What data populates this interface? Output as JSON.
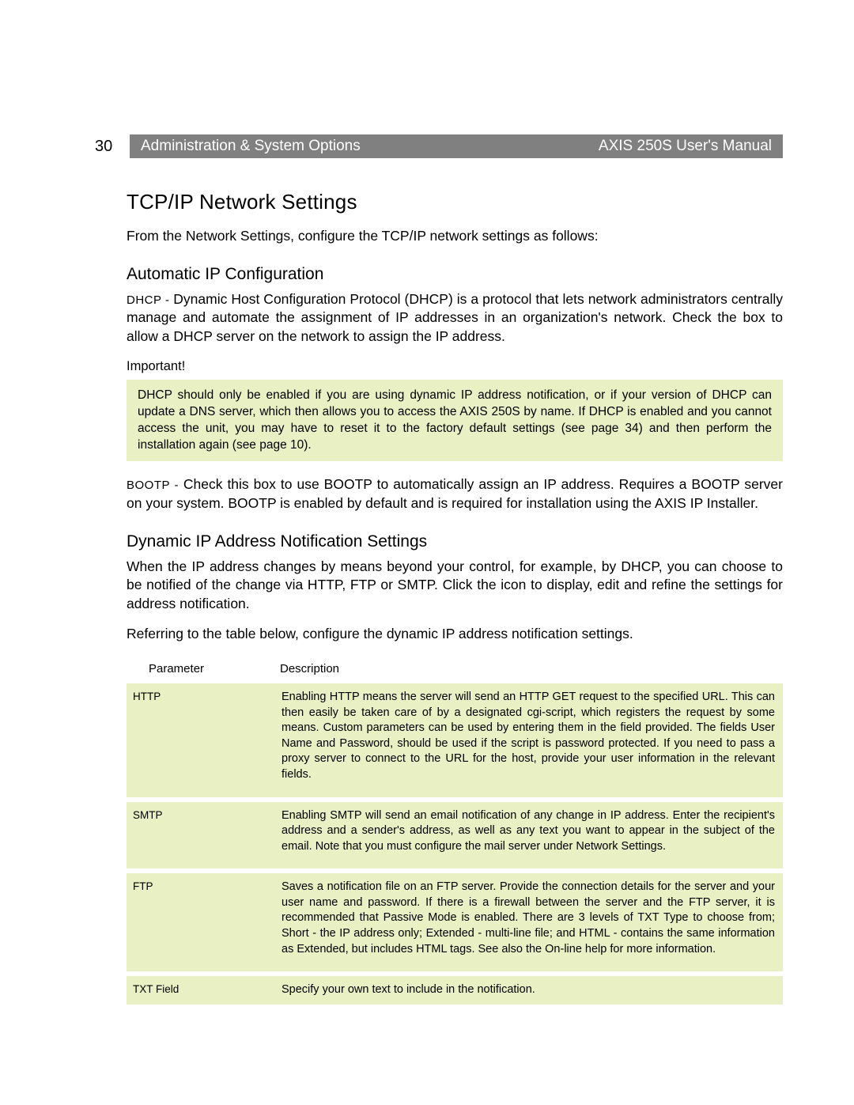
{
  "colors": {
    "header_bg": "#808080",
    "header_text": "#ffffff",
    "note_bg": "#e9f0c3",
    "body_text": "#000000",
    "page_bg": "#ffffff"
  },
  "typography": {
    "body_font_size_pt": 13,
    "h1_font_size_pt": 20,
    "h2_font_size_pt": 16,
    "table_font_size_pt": 11
  },
  "header": {
    "page_number": "30",
    "section": "Administration & System Options",
    "manual": "AXIS 250S User's Manual"
  },
  "h1": "TCP/IP Network Settings",
  "intro": "From the Network Settings, configure the TCP/IP network settings as follows:",
  "h2_auto": "Automatic IP Configuration",
  "dhcp_lead": "DHCP - ",
  "dhcp_body": "Dynamic Host Configuration Protocol (DHCP) is a protocol that lets network administrators centrally manage and automate the assignment of IP addresses in an organization's network. Check the box to allow a DHCP server on the network to assign the IP address.",
  "important_label": "Important!",
  "important_note": "DHCP should only be enabled if you are using dynamic IP address notification, or if your version of DHCP can update a DNS server, which then allows you to access the AXIS 250S by name. If DHCP is enabled and you cannot access the unit, you may have to reset it to the factory default settings (see page 34) and then perform the installation again (see page 10).",
  "bootp_lead": "BOOTP  - ",
  "bootp_body": "Check this box to use BOOTP to automatically assign an IP address. Requires a BOOTP server on your system. BOOTP is enabled by default and is required for installation using the AXIS IP Installer.",
  "h2_dyn": "Dynamic IP Address Notification Settings",
  "dyn_p1": "When the IP address changes by means beyond your control, for example, by DHCP, you can choose to be notified of the change via HTTP, FTP or SMTP. Click the icon to display, edit and refine the settings for address notification.",
  "dyn_p2": "Referring to the table below, configure the dynamic IP address notification settings.",
  "table": {
    "headers": {
      "param": "Parameter",
      "desc": "Description"
    },
    "rows": [
      {
        "param": "HTTP",
        "desc": "Enabling HTTP means the server will send an HTTP GET request to the specified URL. This can then easily be taken care of by a designated cgi-script, which registers the request by some means. Custom parameters can be used by entering them in the field provided. The fields User Name and Password, should be used if the script is password protected. If you need to pass a proxy server to connect to the URL for the host, provide your user information in the relevant fields."
      },
      {
        "param": "SMTP",
        "desc": "Enabling SMTP will send an email notification of any change in IP address. Enter the recipient's address and a sender's address, as well as any text you want to appear in the subject of the email. Note that you must configure the mail server under Network Settings."
      },
      {
        "param": "FTP",
        "desc": "Saves a notification file on an FTP server. Provide the connection details for the server and your user name and password. If there is a firewall between the server and the FTP server, it is recommended that Passive Mode is enabled. There are 3 levels of TXT Type to choose from; Short - the IP address only; Extended - multi-line file; and HTML - contains the same information as Extended, but includes HTML tags. See also the On-line help for more information."
      },
      {
        "param": "TXT Field",
        "desc": "Specify your own text to include in the notification."
      }
    ]
  }
}
